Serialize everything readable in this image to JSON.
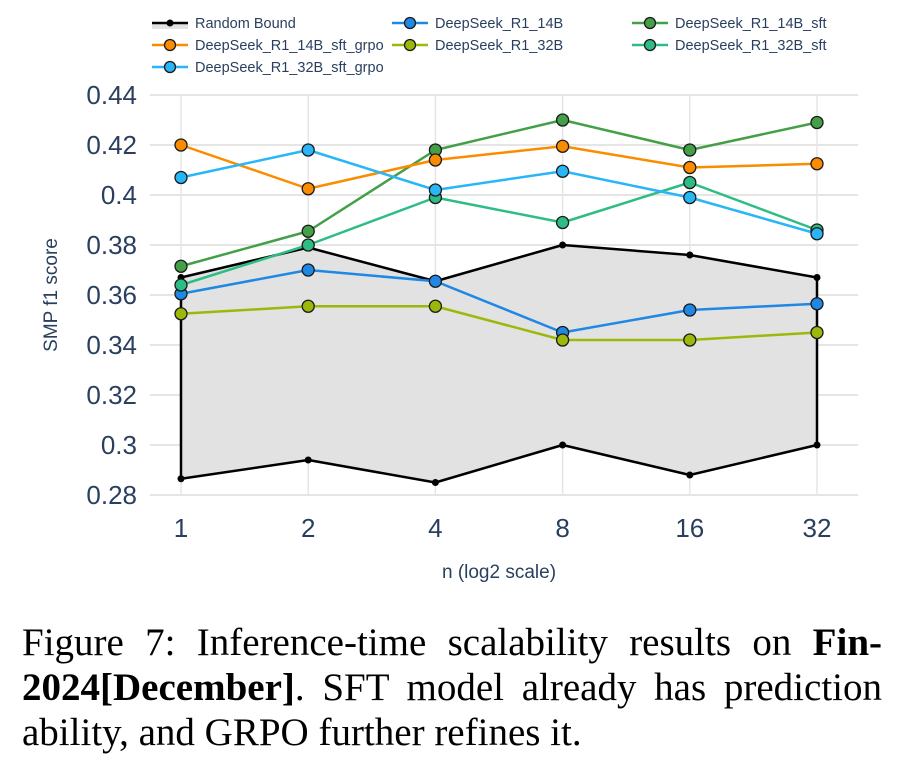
{
  "chart_data": {
    "type": "line",
    "title": "",
    "xlabel": "n (log2 scale)",
    "ylabel": "SMP f1 score",
    "x": [
      1,
      2,
      4,
      8,
      16,
      32
    ],
    "x_tick_labels": [
      "1",
      "2",
      "4",
      "8",
      "16",
      "32"
    ],
    "x_scale": "log2",
    "ylim": [
      0.28,
      0.44
    ],
    "y_ticks": [
      0.28,
      0.3,
      0.32,
      0.34,
      0.36,
      0.38,
      0.4,
      0.42,
      0.44
    ],
    "y_tick_labels": [
      "0.28",
      "0.3",
      "0.32",
      "0.34",
      "0.36",
      "0.38",
      "0.4",
      "0.42",
      "0.44"
    ],
    "grid": true,
    "legend_placement": "top",
    "band": {
      "name": "Random Bound",
      "color": "#000000",
      "fill": "#e2e2e2",
      "upper": [
        0.367,
        0.379,
        0.3655,
        0.38,
        0.376,
        0.367
      ],
      "lower": [
        0.2865,
        0.294,
        0.285,
        0.3,
        0.288,
        0.3
      ]
    },
    "series": [
      {
        "name": "DeepSeek_R1_14B",
        "color": "#1f88e5",
        "values": [
          0.3605,
          0.37,
          0.3655,
          0.345,
          0.354,
          0.3565
        ]
      },
      {
        "name": "DeepSeek_R1_14B_sft",
        "color": "#43a047",
        "values": [
          0.3715,
          0.3855,
          0.418,
          0.43,
          0.418,
          0.429
        ]
      },
      {
        "name": "DeepSeek_R1_14B_sft_grpo",
        "color": "#fb8c00",
        "values": [
          0.42,
          0.4025,
          0.414,
          0.4195,
          0.411,
          0.4125
        ]
      },
      {
        "name": "DeepSeek_R1_32B",
        "color": "#9cb80a",
        "values": [
          0.3525,
          0.3555,
          0.3555,
          0.342,
          0.342,
          0.345
        ]
      },
      {
        "name": "DeepSeek_R1_32B_sft",
        "color": "#2dbd84",
        "values": [
          0.364,
          0.38,
          0.399,
          0.389,
          0.405,
          0.386
        ]
      },
      {
        "name": "DeepSeek_R1_32B_sft_grpo",
        "color": "#29b6f6",
        "values": [
          0.407,
          0.418,
          0.402,
          0.4095,
          0.399,
          0.3845
        ]
      }
    ],
    "legend": [
      {
        "label": "Random Bound",
        "color": "#000000",
        "kind": "band"
      },
      {
        "label": "DeepSeek_R1_14B",
        "color": "#1f88e5",
        "kind": "line"
      },
      {
        "label": "DeepSeek_R1_14B_sft",
        "color": "#43a047",
        "kind": "line"
      },
      {
        "label": "DeepSeek_R1_14B_sft_grpo",
        "color": "#fb8c00",
        "kind": "line"
      },
      {
        "label": "DeepSeek_R1_32B",
        "color": "#9cb80a",
        "kind": "line"
      },
      {
        "label": "DeepSeek_R1_32B_sft",
        "color": "#2dbd84",
        "kind": "line"
      },
      {
        "label": "DeepSeek_R1_32B_sft_grpo",
        "color": "#29b6f6",
        "kind": "line"
      }
    ]
  },
  "caption": {
    "prefix": "Figure 7:  Inference-time scalability results on ",
    "bold": "Fin-2024[December]",
    "suffix": ".  SFT model already has prediction ability, and GRPO further refines it."
  }
}
